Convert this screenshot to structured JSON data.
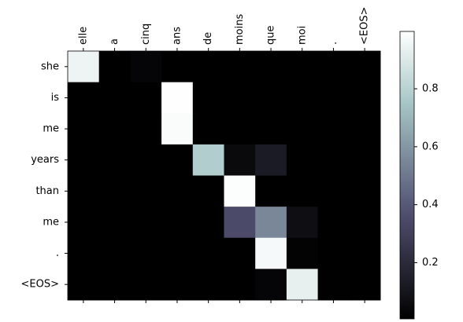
{
  "chart_data": {
    "type": "heatmap",
    "colormap": "bone",
    "x_categories": [
      "elle",
      "a",
      "cinq",
      "ans",
      "de",
      "moins",
      "que",
      "moi",
      ".",
      "<EOS>"
    ],
    "y_categories": [
      "she",
      "is",
      "me",
      "years",
      "than",
      "me",
      ".",
      "<EOS>"
    ],
    "values": [
      [
        0.95,
        0.005,
        0.03,
        0.005,
        0.005,
        0.005,
        0.005,
        0.005,
        0.005,
        0.005
      ],
      [
        0.005,
        0.005,
        0.005,
        0.995,
        0.005,
        0.005,
        0.005,
        0.005,
        0.005,
        0.005
      ],
      [
        0.005,
        0.005,
        0.005,
        0.985,
        0.005,
        0.005,
        0.005,
        0.005,
        0.005,
        0.005
      ],
      [
        0.005,
        0.005,
        0.005,
        0.005,
        0.78,
        0.05,
        0.13,
        0.005,
        0.005,
        0.005
      ],
      [
        0.005,
        0.005,
        0.005,
        0.005,
        0.005,
        0.99,
        0.005,
        0.005,
        0.005,
        0.005
      ],
      [
        0.005,
        0.005,
        0.005,
        0.005,
        0.005,
        0.35,
        0.55,
        0.07,
        0.005,
        0.005
      ],
      [
        0.005,
        0.005,
        0.005,
        0.005,
        0.005,
        0.005,
        0.97,
        0.02,
        0.005,
        0.005
      ],
      [
        0.005,
        0.005,
        0.005,
        0.005,
        0.005,
        0.005,
        0.03,
        0.93,
        0.01,
        0.005
      ]
    ],
    "clim": [
      0.006,
      0.998
    ],
    "colorbar_ticks": [
      0.2,
      0.4,
      0.6,
      0.8
    ]
  }
}
